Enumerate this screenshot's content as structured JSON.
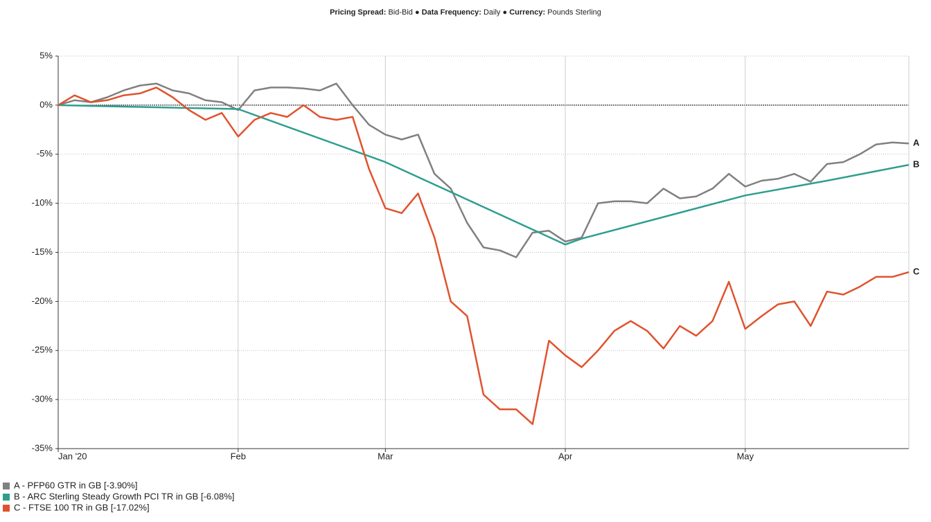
{
  "chart_data": {
    "type": "line",
    "header": [
      {
        "label": "Pricing Spread:",
        "value": "Bid-Bid"
      },
      {
        "label": "Data Frequency:",
        "value": "Daily"
      },
      {
        "label": "Currency:",
        "value": "Pounds Sterling"
      }
    ],
    "xlim": [
      0,
      104
    ],
    "xticks": [
      {
        "value": 0,
        "label": "Jan '20"
      },
      {
        "value": 22,
        "label": "Feb"
      },
      {
        "value": 40,
        "label": "Mar"
      },
      {
        "value": 62,
        "label": "Apr"
      },
      {
        "value": 84,
        "label": "May"
      }
    ],
    "ylim": [
      -35,
      5
    ],
    "yticks": [
      {
        "value": 5,
        "label": "5%"
      },
      {
        "value": 0,
        "label": "0%"
      },
      {
        "value": -5,
        "label": "-5%"
      },
      {
        "value": -10,
        "label": "-10%"
      },
      {
        "value": -15,
        "label": "-15%"
      },
      {
        "value": -20,
        "label": "-20%"
      },
      {
        "value": -25,
        "label": "-25%"
      },
      {
        "value": -30,
        "label": "-30%"
      },
      {
        "value": -35,
        "label": "-35%"
      }
    ],
    "grid": true,
    "legend": "bottom-left",
    "series": [
      {
        "name": "A - PFP60 GTR in GB [-3.90%]",
        "end_label": "A",
        "color": "#808080",
        "x": [
          0,
          2,
          4,
          6,
          8,
          10,
          12,
          14,
          16,
          18,
          20,
          22,
          24,
          26,
          28,
          30,
          32,
          34,
          36,
          38,
          40,
          42,
          44,
          46,
          48,
          50,
          52,
          54,
          56,
          58,
          60,
          62,
          64,
          66,
          68,
          70,
          72,
          74,
          76,
          78,
          80,
          82,
          84,
          86,
          88,
          90,
          92,
          94,
          96,
          98,
          100,
          102,
          104
        ],
        "values": [
          0,
          0.5,
          0.3,
          0.8,
          1.5,
          2.0,
          2.2,
          1.5,
          1.2,
          0.5,
          0.3,
          -0.5,
          1.5,
          1.8,
          1.8,
          1.7,
          1.5,
          2.2,
          0.0,
          -2.0,
          -3.0,
          -3.5,
          -3.0,
          -7.0,
          -8.5,
          -12.0,
          -14.5,
          -14.8,
          -15.5,
          -13.0,
          -12.8,
          -13.9,
          -13.5,
          -10.0,
          -9.8,
          -9.8,
          -10.0,
          -8.5,
          -9.5,
          -9.3,
          -8.5,
          -7.0,
          -8.3,
          -7.7,
          -7.5,
          -7.0,
          -7.8,
          -6.0,
          -5.8,
          -5.0,
          -4.0,
          -3.8,
          -3.9
        ]
      },
      {
        "name": "B - ARC Sterling Steady Growth PCI TR in GB [-6.08%]",
        "end_label": "B",
        "color": "#2e9e8f",
        "x": [
          0,
          22,
          40,
          62,
          64,
          84,
          94,
          104
        ],
        "values": [
          0,
          -0.4,
          -5.8,
          -14.2,
          -13.6,
          -9.2,
          -7.7,
          -6.08
        ]
      },
      {
        "name": "C - FTSE 100 TR in GB [-17.02%]",
        "end_label": "C",
        "color": "#e0522d",
        "x": [
          0,
          2,
          4,
          6,
          8,
          10,
          12,
          14,
          16,
          18,
          20,
          22,
          24,
          26,
          28,
          30,
          32,
          34,
          36,
          38,
          40,
          42,
          44,
          46,
          48,
          50,
          52,
          54,
          56,
          58,
          60,
          62,
          64,
          66,
          68,
          70,
          72,
          74,
          76,
          78,
          80,
          82,
          84,
          86,
          88,
          90,
          92,
          94,
          96,
          98,
          100,
          102,
          104
        ],
        "values": [
          0,
          1.0,
          0.3,
          0.5,
          1.0,
          1.2,
          1.8,
          0.8,
          -0.5,
          -1.5,
          -0.8,
          -3.2,
          -1.5,
          -0.8,
          -1.2,
          0.0,
          -1.2,
          -1.5,
          -1.2,
          -6.5,
          -10.5,
          -11.0,
          -9.0,
          -13.5,
          -20.0,
          -21.5,
          -29.5,
          -31.0,
          -31.0,
          -32.5,
          -24.0,
          -25.5,
          -26.7,
          -25.0,
          -23.0,
          -22.0,
          -23.0,
          -24.8,
          -22.5,
          -23.5,
          -22.0,
          -18.0,
          -22.8,
          -21.5,
          -20.3,
          -20.0,
          -22.5,
          -19.0,
          -19.3,
          -18.5,
          -17.5,
          -17.5,
          -17.02
        ]
      }
    ]
  }
}
